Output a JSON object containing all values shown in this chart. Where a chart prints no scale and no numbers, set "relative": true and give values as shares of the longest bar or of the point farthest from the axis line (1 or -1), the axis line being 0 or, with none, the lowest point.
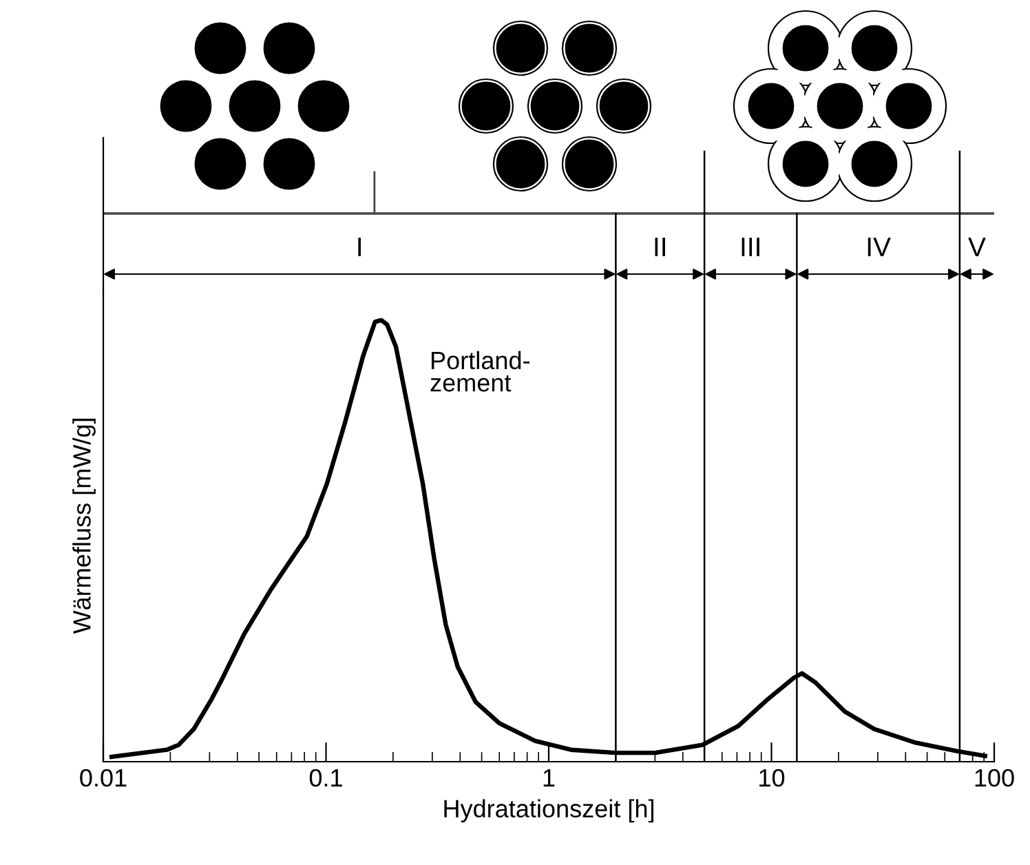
{
  "chart_data": {
    "type": "line",
    "relative": true,
    "xlabel": "Hydratationszeit [h]",
    "ylabel": "Wärmefluss [mW/g]",
    "log": "x",
    "xlim": [
      0.01,
      100
    ],
    "xticks": [
      0.01,
      0.1,
      1,
      10,
      100
    ],
    "grid": false,
    "marker": "none",
    "line_style": "solid",
    "series": [
      {
        "name": "Portland-\nzement",
        "color": "#000000",
        "x": [
          0.0109,
          0.0193,
          0.0218,
          0.0255,
          0.0306,
          0.0336,
          0.043,
          0.0566,
          0.066,
          0.082,
          0.101,
          0.122,
          0.147,
          0.166,
          0.177,
          0.188,
          0.206,
          0.24,
          0.272,
          0.306,
          0.345,
          0.39,
          0.47,
          0.6,
          0.87,
          1.26,
          2.0,
          3.0,
          4.9,
          7.1,
          9.6,
          12.6,
          13.7,
          15.7,
          21.3,
          28.9,
          44.4,
          68,
          91
        ],
        "values": [
          0.011,
          0.027,
          0.038,
          0.074,
          0.141,
          0.18,
          0.29,
          0.39,
          0.44,
          0.51,
          0.63,
          0.77,
          0.92,
          0.996,
          1.0,
          0.99,
          0.94,
          0.77,
          0.63,
          0.46,
          0.31,
          0.215,
          0.135,
          0.087,
          0.047,
          0.027,
          0.02,
          0.02,
          0.038,
          0.081,
          0.141,
          0.19,
          0.2,
          0.18,
          0.114,
          0.074,
          0.043,
          0.024,
          0.013
        ]
      }
    ],
    "ref_lines": [
      {
        "axis": "x",
        "value": 2
      },
      {
        "axis": "x",
        "value": 5
      },
      {
        "axis": "x",
        "value": 13
      },
      {
        "axis": "x",
        "value": 70
      }
    ],
    "annotations": [
      "I",
      "II",
      "III",
      "IV",
      "V"
    ]
  }
}
